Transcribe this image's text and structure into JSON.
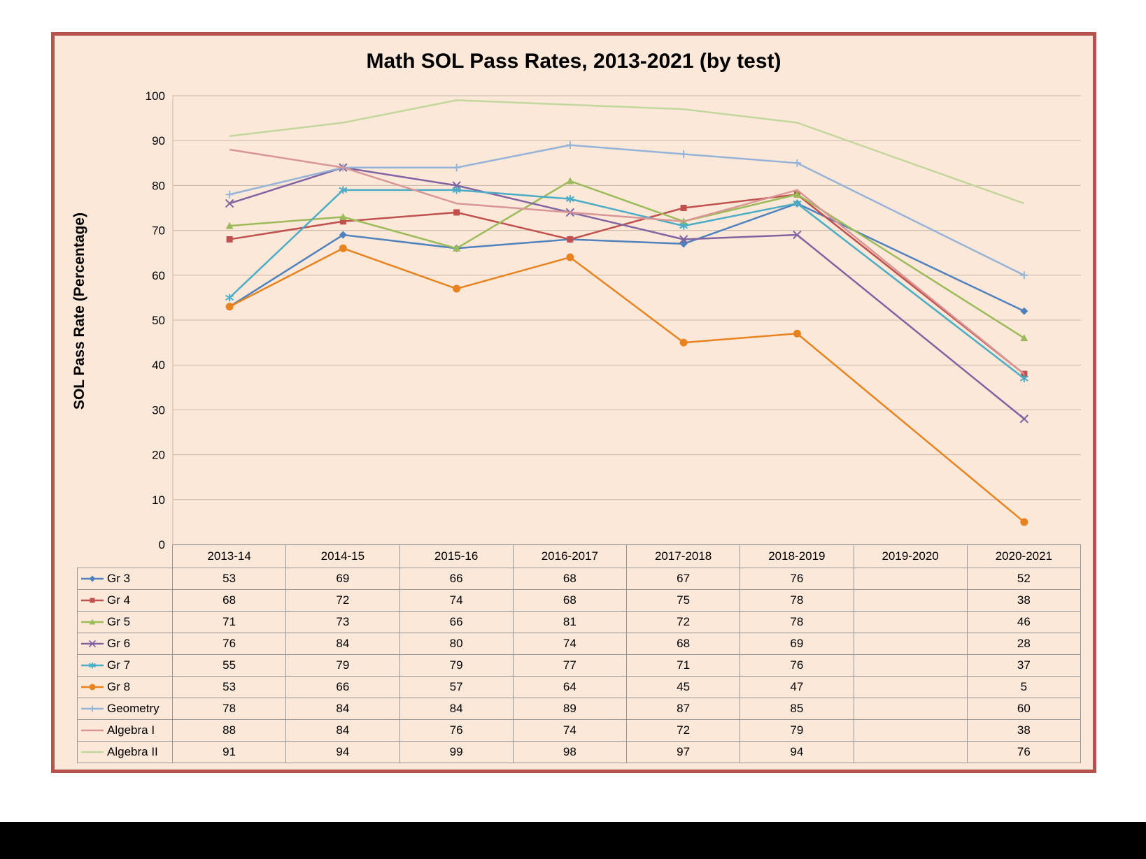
{
  "page": {
    "title": "Math SOL Pass Rates, 2013-2021 (by test)"
  },
  "colors": {
    "frame_border": "#B5534C",
    "background": "#FCE8D9",
    "gridline": "#C3B8AB",
    "axis_line": "#C3B8AB",
    "table_border": "#969696",
    "text": "#000000"
  },
  "chart_data": {
    "type": "line",
    "title": "Math SOL Pass Rates, 2013-2021 (by test)",
    "xlabel": "",
    "ylabel": "SOL Pass Rate (Percentage)",
    "ylim": [
      0,
      100
    ],
    "ytick_step": 10,
    "grid": true,
    "legend_position": "data-table-left",
    "note": "2019-2020 column is blank (no data shown); lines connect across the gap",
    "categories": [
      "2013-14",
      "2014-15",
      "2015-16",
      "2016-2017",
      "2017-2018",
      "2018-2019",
      "2019-2020",
      "2020-2021"
    ],
    "series": [
      {
        "name": "Gr 3",
        "color": "#4F81BD",
        "marker": "diamond",
        "values": [
          53,
          69,
          66,
          68,
          67,
          76,
          null,
          52
        ]
      },
      {
        "name": "Gr 4",
        "color": "#C0504D",
        "marker": "square",
        "values": [
          68,
          72,
          74,
          68,
          75,
          78,
          null,
          38
        ]
      },
      {
        "name": "Gr 5",
        "color": "#9BBB59",
        "marker": "triangle",
        "values": [
          71,
          73,
          66,
          81,
          72,
          78,
          null,
          46
        ]
      },
      {
        "name": "Gr 6",
        "color": "#8064A2",
        "marker": "x",
        "values": [
          76,
          84,
          80,
          74,
          68,
          69,
          null,
          28
        ]
      },
      {
        "name": "Gr 7",
        "color": "#4BACC6",
        "marker": "asterisk",
        "values": [
          55,
          79,
          79,
          77,
          71,
          76,
          null,
          37
        ]
      },
      {
        "name": "Gr 8",
        "color": "#E8821E",
        "marker": "circle",
        "values": [
          53,
          66,
          57,
          64,
          45,
          47,
          null,
          5
        ]
      },
      {
        "name": "Geometry",
        "color": "#95B3D7",
        "marker": "plus",
        "values": [
          78,
          84,
          84,
          89,
          87,
          85,
          null,
          60
        ]
      },
      {
        "name": "Algebra I",
        "color": "#D99694",
        "marker": "none",
        "values": [
          88,
          84,
          76,
          74,
          72,
          79,
          null,
          38
        ]
      },
      {
        "name": "Algebra II",
        "color": "#C3D69B",
        "marker": "none",
        "values": [
          91,
          94,
          99,
          98,
          97,
          94,
          null,
          76
        ]
      }
    ]
  }
}
